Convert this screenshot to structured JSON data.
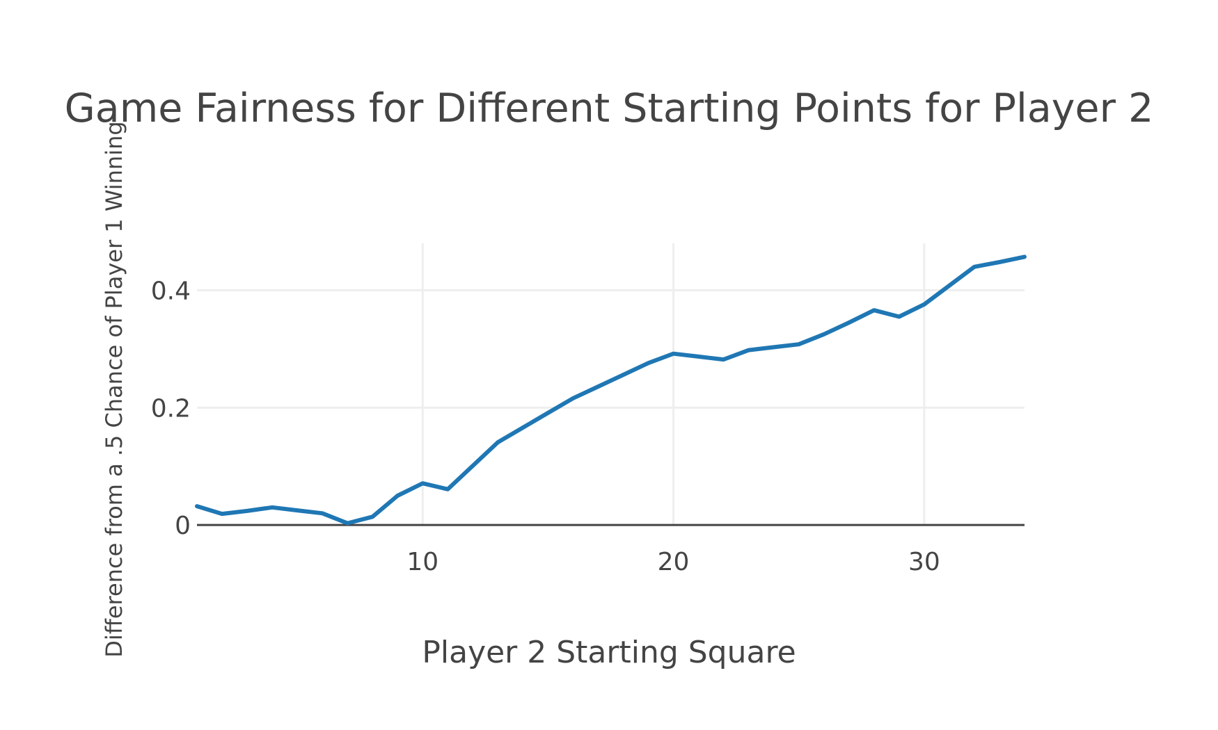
{
  "chart_data": {
    "type": "line",
    "title": "Game Fairness for Different Starting Points for Player 2",
    "xlabel": "Player 2 Starting Square",
    "ylabel": "Difference from a .5 Chance of Player 1 Winning",
    "xlim": [
      1,
      34
    ],
    "ylim": [
      -0.001,
      0.48
    ],
    "x_ticks": [
      10,
      20,
      30
    ],
    "y_ticks": [
      0,
      0.2,
      0.4
    ],
    "x_tick_labels": [
      "10",
      "20",
      "30"
    ],
    "y_tick_labels": [
      "0",
      "0.2",
      "0.4"
    ],
    "grid": true,
    "legend": "none",
    "color": "#1f77b4",
    "series": [
      {
        "x": [
          1,
          2,
          3,
          4,
          5,
          6,
          7,
          8,
          9,
          10,
          11,
          12,
          13,
          14,
          15,
          16,
          17,
          18,
          19,
          20,
          21,
          22,
          23,
          24,
          25,
          26,
          27,
          28,
          29,
          30,
          31,
          32,
          33,
          34
        ],
        "values": [
          0.032,
          0.019,
          0.024,
          0.03,
          0.025,
          0.02,
          0.003,
          0.014,
          0.05,
          0.071,
          0.061,
          0.101,
          0.141,
          0.166,
          0.191,
          0.216,
          0.236,
          0.256,
          0.276,
          0.292,
          0.287,
          0.282,
          0.298,
          0.303,
          0.308,
          0.325,
          0.345,
          0.366,
          0.355,
          0.376,
          0.408,
          0.44,
          0.448,
          0.457
        ]
      }
    ]
  }
}
